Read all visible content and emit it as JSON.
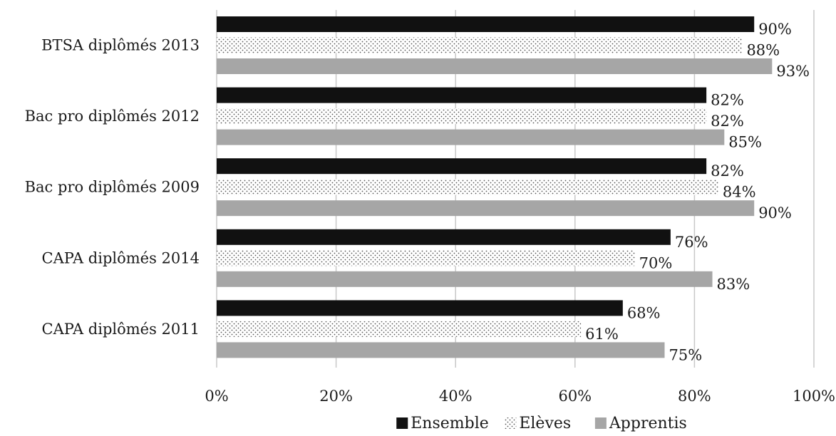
{
  "chart_data": {
    "type": "bar",
    "orientation": "horizontal",
    "categories": [
      "BTSA diplômés 2013",
      "Bac pro diplômés 2012",
      "Bac pro diplômés 2009",
      "CAPA diplômés 2014",
      "CAPA diplômés 2011"
    ],
    "series": [
      {
        "name": "Ensemble",
        "values": [
          90,
          82,
          82,
          76,
          68
        ],
        "labels": [
          "90%",
          "82%",
          "82%",
          "76%",
          "68%"
        ],
        "color": "#111111",
        "pattern": "solid"
      },
      {
        "name": "Elèves",
        "values": [
          88,
          82,
          84,
          70,
          61
        ],
        "labels": [
          "88%",
          "82%",
          "84%",
          "70%",
          "61%"
        ],
        "color": "#ffffff",
        "pattern": "dotted"
      },
      {
        "name": "Apprentis",
        "values": [
          93,
          85,
          90,
          83,
          75
        ],
        "labels": [
          "93%",
          "85%",
          "90%",
          "83%",
          "75%"
        ],
        "color": "#a6a6a6",
        "pattern": "solid"
      }
    ],
    "xlim": [
      0,
      100
    ],
    "xticks": [
      0,
      20,
      40,
      60,
      80,
      100
    ],
    "xtick_labels": [
      "0%",
      "20%",
      "40%",
      "60%",
      "80%",
      "100%"
    ],
    "grid": "vertical",
    "legend": "bottom"
  }
}
